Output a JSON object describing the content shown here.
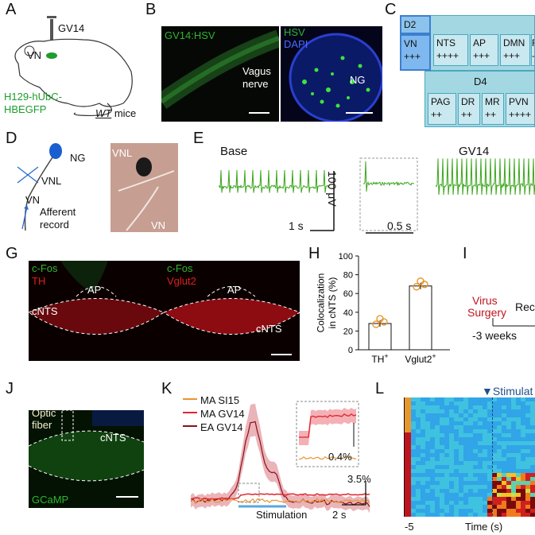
{
  "panels": {
    "A": {
      "label": "A",
      "gv14": "GV14",
      "vn": "VN",
      "virus": "H129-hUbC-\nHBEGFP",
      "mice": "WT",
      "mice_suffix": " mice"
    },
    "B": {
      "label": "B",
      "left": "GV14:HSV",
      "nerve": "Vagus\nnerve",
      "hsv": "HSV",
      "dapi": "DAPI",
      "ng": "NG"
    },
    "C": {
      "label": "C",
      "d2": "D2",
      "row1": [
        {
          "name": "VN",
          "val": "+++"
        },
        {
          "name": "NTS",
          "val": "++++"
        },
        {
          "name": "AP",
          "val": "+++"
        },
        {
          "name": "DMN",
          "val": "+++"
        },
        {
          "name": "F",
          "val": "-"
        }
      ],
      "d4": "D4",
      "row2": [
        {
          "name": "PAG",
          "val": "++"
        },
        {
          "name": "DR",
          "val": "++"
        },
        {
          "name": "MR",
          "val": "++"
        },
        {
          "name": "PVN",
          "val": "++++"
        }
      ]
    },
    "D": {
      "label": "D",
      "ng": "NG",
      "vnl": "VNL",
      "vn": "VN",
      "afferent": "Afferent\nrecord",
      "photo_vnl": "VNL",
      "photo_vn": "VN"
    },
    "E": {
      "label": "E",
      "base": "Base",
      "gv14": "GV14",
      "scale_v": "100 μV",
      "scale_t1": "1 s",
      "scale_t2": "0.5 s"
    },
    "G": {
      "label": "G",
      "cfos1": "c-Fos",
      "th": "TH",
      "cfos2": "c-Fos",
      "vglut2": "Vglut2",
      "ap1": "AP",
      "ap2": "AP",
      "cnts1": "cNTS",
      "cnts2": "cNTS"
    },
    "H": {
      "label": "H",
      "ylabel": "Colocalization\nin cNTS (%)",
      "categories": [
        "TH+",
        "Vglut2+"
      ]
    },
    "I": {
      "label": "I",
      "virus": "Virus",
      "surgery": "Surgery",
      "rec": "Rec",
      "weeks": "-3 weeks"
    },
    "J": {
      "label": "J",
      "optic": "Optic\nfiber",
      "cnts": "cNTS",
      "gcamp": "GCaMP"
    },
    "K": {
      "label": "K",
      "legend": [
        "MA SI15",
        "MA GV14",
        "EA GV14"
      ],
      "inset_scale": "0.4%",
      "scale_y": "3.5%",
      "scale_t": "2 s",
      "stim": "Stimulation"
    },
    "L": {
      "label": "L",
      "stim": "Stimulat",
      "xlabel": "Time (s)",
      "xstart": "-5"
    }
  },
  "chart_data": {
    "type": "bar",
    "categories": [
      "TH+",
      "Vglut2+"
    ],
    "values": [
      28,
      68
    ],
    "ylabel": "Colocalization in cNTS (%)",
    "ylim": [
      0,
      100
    ],
    "yticks": [
      0,
      20,
      40,
      60,
      80,
      100
    ]
  },
  "colors": {
    "green": "#2fb52f",
    "red": "#c0141d",
    "table_blue": "#c9e8ef",
    "table_dark": "#4a90d9",
    "orange": "#e8962e"
  }
}
